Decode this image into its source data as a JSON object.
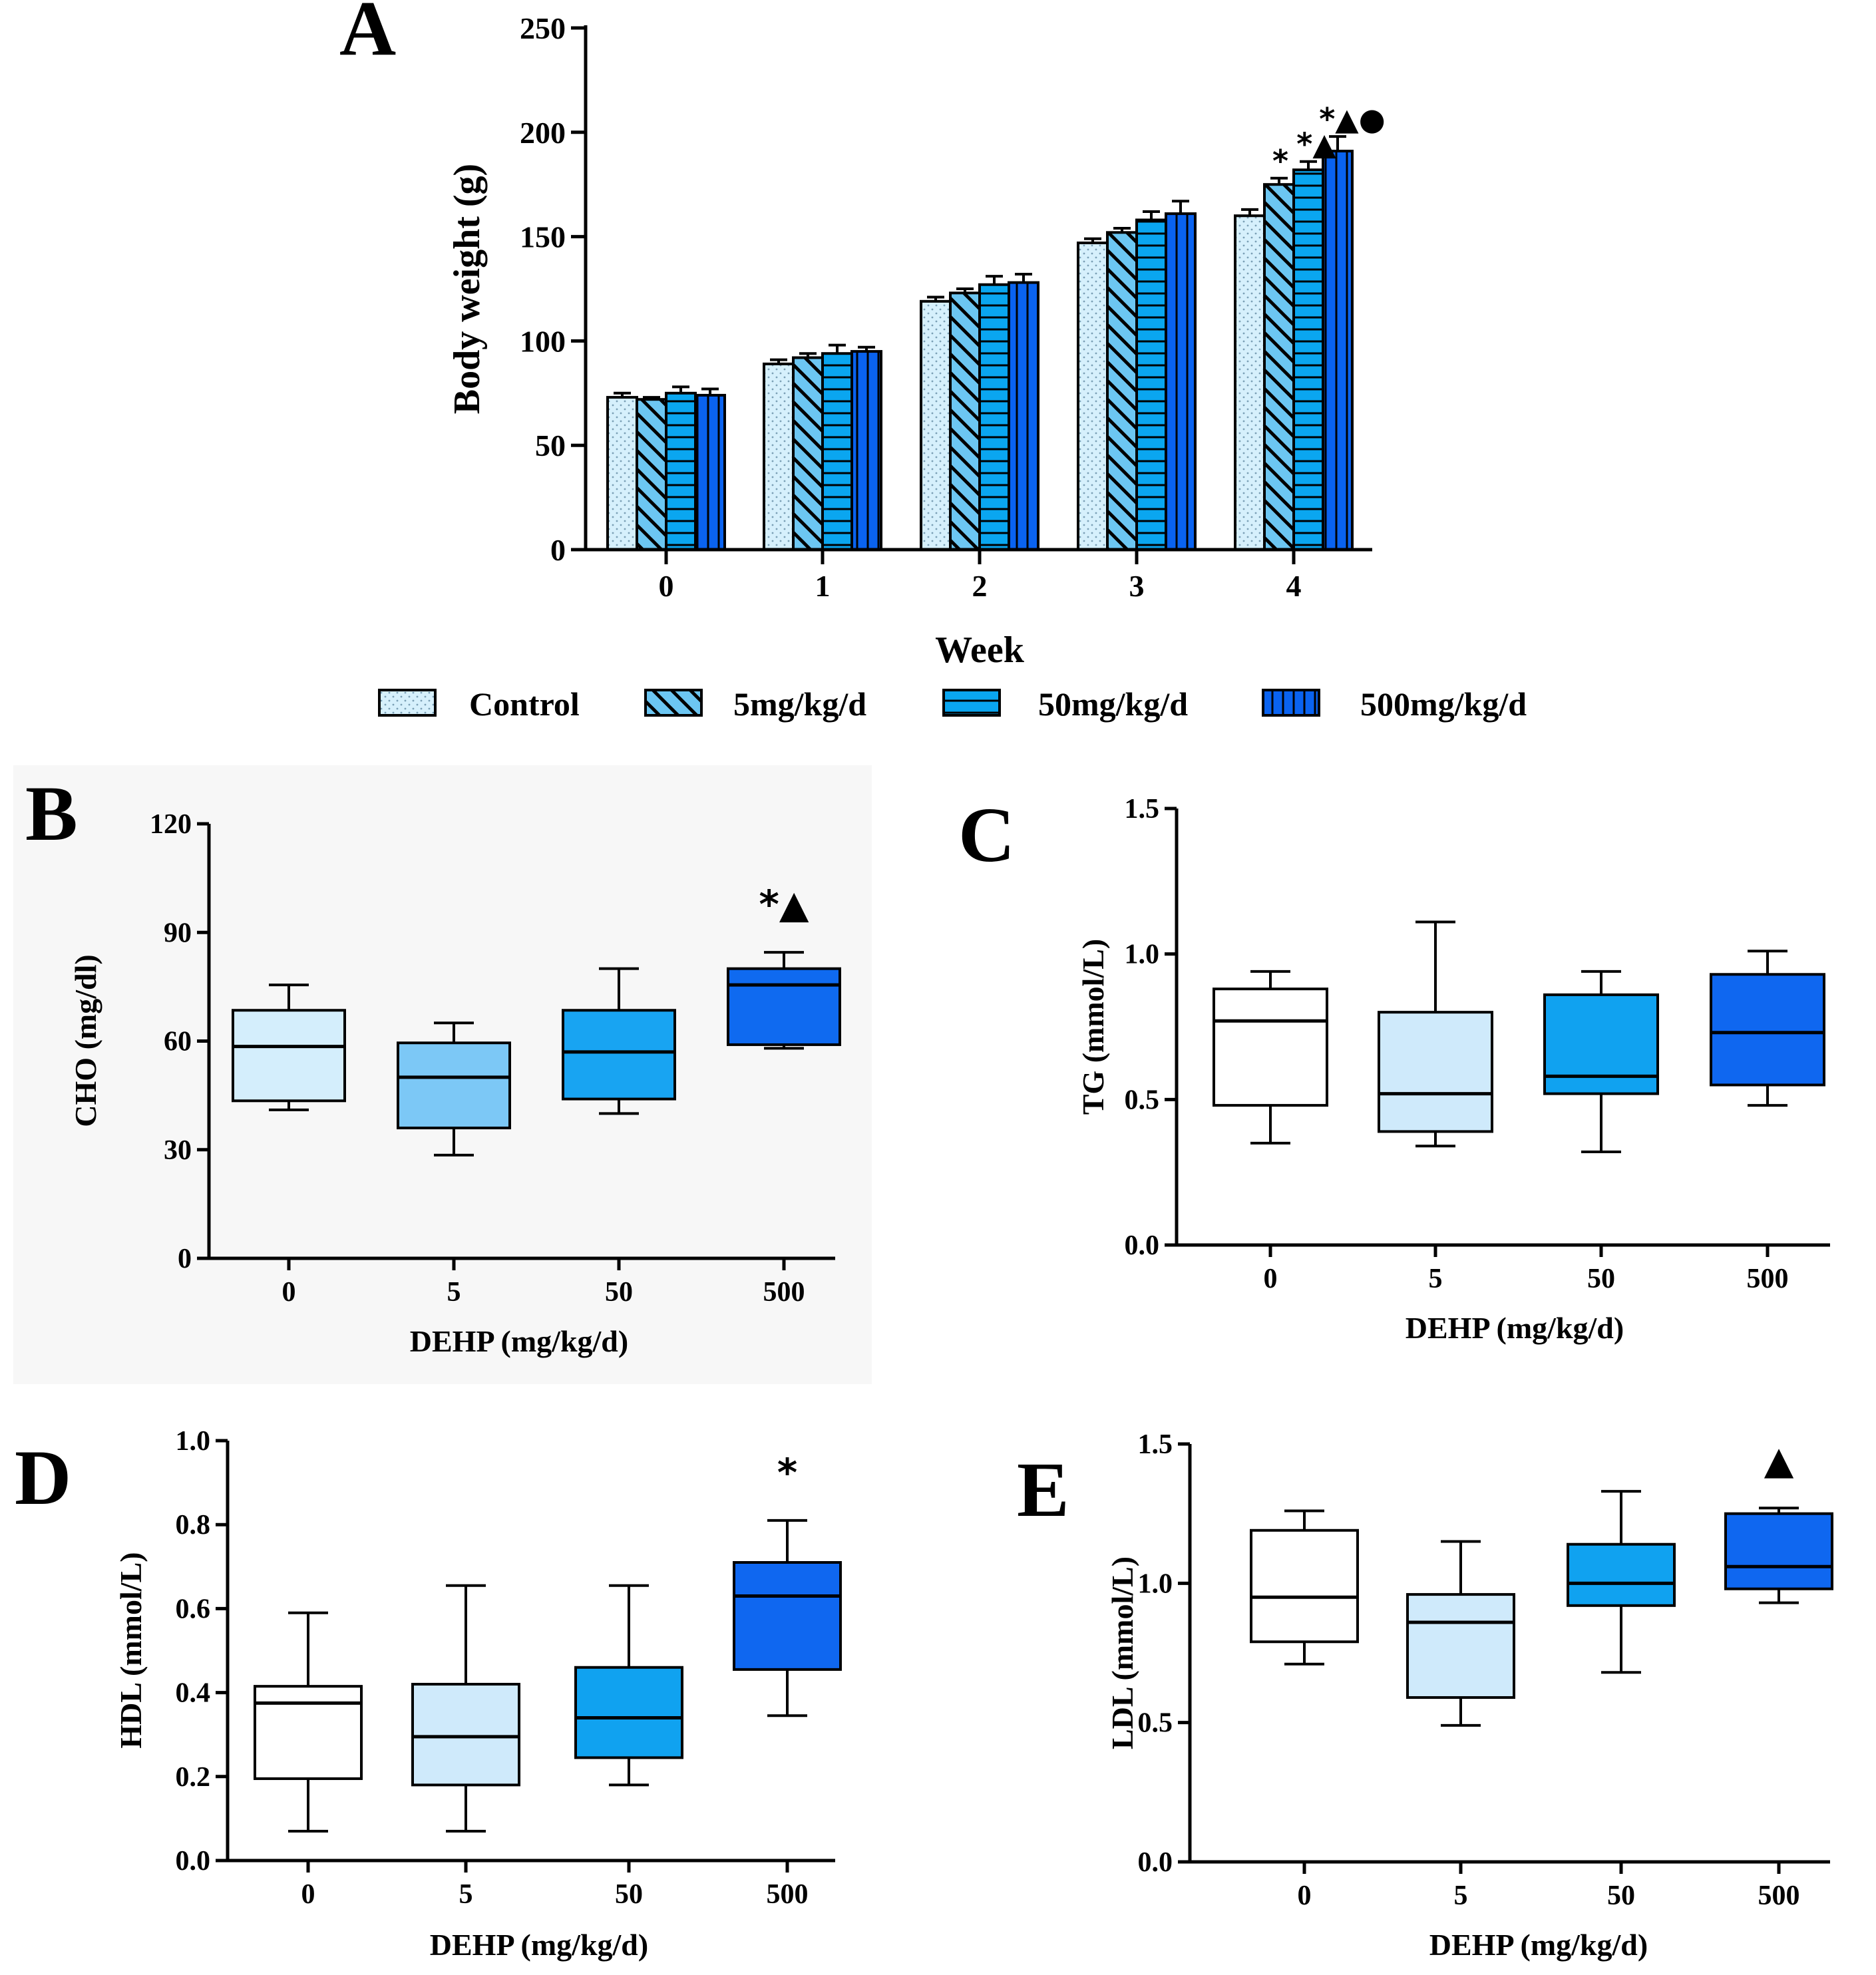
{
  "chart_data": [
    {
      "panel": "A",
      "type": "bar",
      "xlabel": "Week",
      "ylabel": "Body weight (g)",
      "ylim": [
        0,
        250
      ],
      "yticks": [
        0,
        50,
        100,
        150,
        200,
        250
      ],
      "categories": [
        "0",
        "1",
        "2",
        "3",
        "4"
      ],
      "series": [
        {
          "name": "Control",
          "color": "#d6f0fc",
          "pattern": "dots",
          "values": [
            73,
            89,
            119,
            147,
            160
          ],
          "errors": [
            2,
            2,
            2,
            2,
            3
          ]
        },
        {
          "name": "5mg/kg/d",
          "color": "#6cc6f2",
          "pattern": "diagonal",
          "values": [
            72,
            92,
            123,
            152,
            175
          ],
          "errors": [
            1,
            2,
            2,
            2,
            3
          ]
        },
        {
          "name": "50mg/kg/d",
          "color": "#0aa6f0",
          "pattern": "horizontal",
          "values": [
            75,
            94,
            127,
            158,
            182
          ],
          "errors": [
            3,
            4,
            4,
            4,
            4
          ]
        },
        {
          "name": "500mg/kg/d",
          "color": "#0a63f0",
          "pattern": "vertical",
          "values": [
            74,
            95,
            128,
            161,
            191
          ],
          "errors": [
            3,
            2,
            4,
            6,
            7
          ]
        }
      ],
      "annotations": [
        {
          "category": "4",
          "series": "5mg/kg/d",
          "text": "*"
        },
        {
          "category": "4",
          "series": "50mg/kg/d",
          "text": "*▲"
        },
        {
          "category": "4",
          "series": "500mg/kg/d",
          "text": "*▲●"
        }
      ]
    },
    {
      "panel": "B",
      "type": "box",
      "xlabel": "DEHP  (mg/kg/d)",
      "ylabel": "CHO (mg/dl)",
      "ylim": [
        0,
        120
      ],
      "yticks": [
        0,
        30,
        60,
        90,
        120
      ],
      "categories": [
        "0",
        "5",
        "50",
        "500"
      ],
      "boxes": [
        {
          "min": 41,
          "q1": 43.5,
          "median": 58.5,
          "q3": 68.5,
          "max": 75.5,
          "color": "#d4eefc"
        },
        {
          "min": 28.5,
          "q1": 36,
          "median": 50,
          "q3": 59.5,
          "max": 65,
          "color": "#7cc8f6"
        },
        {
          "min": 40,
          "q1": 44,
          "median": 57,
          "q3": 68.5,
          "max": 80,
          "color": "#18a4f2"
        },
        {
          "min": 58,
          "q1": 59,
          "median": 75.5,
          "q3": 80,
          "max": 84.5,
          "color": "#0f6af0"
        }
      ],
      "annotations": [
        {
          "category": "500",
          "text": "*▲"
        }
      ]
    },
    {
      "panel": "C",
      "type": "box",
      "xlabel": "DEHP  (mg/kg/d)",
      "ylabel": "TG (mmol/L)",
      "ylim": [
        0,
        1.5
      ],
      "yticks": [
        "0.0",
        "0.5",
        "1.0",
        "1.5"
      ],
      "categories": [
        "0",
        "5",
        "50",
        "500"
      ],
      "boxes": [
        {
          "min": 0.35,
          "q1": 0.48,
          "median": 0.77,
          "q3": 0.88,
          "max": 0.94,
          "color": "#ffffff"
        },
        {
          "min": 0.34,
          "q1": 0.39,
          "median": 0.52,
          "q3": 0.8,
          "max": 1.11,
          "color": "#cfeafb"
        },
        {
          "min": 0.32,
          "q1": 0.52,
          "median": 0.58,
          "q3": 0.86,
          "max": 0.94,
          "color": "#10a2f0"
        },
        {
          "min": 0.48,
          "q1": 0.55,
          "median": 0.73,
          "q3": 0.93,
          "max": 1.01,
          "color": "#0f67f0"
        }
      ]
    },
    {
      "panel": "D",
      "type": "box",
      "xlabel": "DEHP (mg/kg/d)",
      "ylabel": "HDL (mmol/L)",
      "ylim": [
        0,
        1.0
      ],
      "yticks": [
        "0.0",
        "0.2",
        "0.4",
        "0.6",
        "0.8",
        "1.0"
      ],
      "categories": [
        "0",
        "5",
        "50",
        "500"
      ],
      "boxes": [
        {
          "min": 0.07,
          "q1": 0.195,
          "median": 0.375,
          "q3": 0.415,
          "max": 0.59,
          "color": "#ffffff"
        },
        {
          "min": 0.07,
          "q1": 0.18,
          "median": 0.295,
          "q3": 0.42,
          "max": 0.655,
          "color": "#cfeafb"
        },
        {
          "min": 0.18,
          "q1": 0.245,
          "median": 0.34,
          "q3": 0.46,
          "max": 0.655,
          "color": "#10a2f0"
        },
        {
          "min": 0.345,
          "q1": 0.455,
          "median": 0.63,
          "q3": 0.71,
          "max": 0.81,
          "color": "#0f67f0"
        }
      ],
      "annotations": [
        {
          "category": "500",
          "text": "*"
        }
      ]
    },
    {
      "panel": "E",
      "type": "box",
      "xlabel": "DEHP (mg/kg/d)",
      "ylabel": "LDL (mmol/L)",
      "ylim": [
        0,
        1.5
      ],
      "yticks": [
        "0.0",
        "0.5",
        "1.0",
        "1.5"
      ],
      "categories": [
        "0",
        "5",
        "50",
        "500"
      ],
      "boxes": [
        {
          "min": 0.71,
          "q1": 0.79,
          "median": 0.95,
          "q3": 1.19,
          "max": 1.26,
          "color": "#ffffff"
        },
        {
          "min": 0.49,
          "q1": 0.59,
          "median": 0.86,
          "q3": 0.96,
          "max": 1.15,
          "color": "#cfeafb"
        },
        {
          "min": 0.68,
          "q1": 0.92,
          "median": 1.0,
          "q3": 1.14,
          "max": 1.33,
          "color": "#10a2f0"
        },
        {
          "min": 0.93,
          "q1": 0.98,
          "median": 1.06,
          "q3": 1.25,
          "max": 1.27,
          "color": "#0f67f0"
        }
      ],
      "annotations": [
        {
          "category": "500",
          "text": "▲"
        }
      ]
    }
  ]
}
